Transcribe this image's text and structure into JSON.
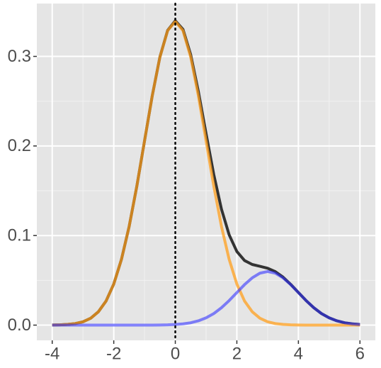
{
  "chart_data": {
    "type": "line",
    "x": [
      -4,
      -3.75,
      -3.5,
      -3.25,
      -3,
      -2.75,
      -2.5,
      -2.25,
      -2,
      -1.75,
      -1.5,
      -1.25,
      -1,
      -0.75,
      -0.5,
      -0.25,
      0,
      0.25,
      0.5,
      0.75,
      1,
      1.25,
      1.5,
      1.75,
      2,
      2.25,
      2.5,
      2.75,
      3,
      3.25,
      3.5,
      3.75,
      4,
      4.25,
      4.5,
      4.75,
      5,
      5.25,
      5.5,
      5.75,
      6
    ],
    "series": [
      {
        "color": "#333333",
        "alpha": 1,
        "values": [
          0.0001,
          0.0003,
          0.0008,
          0.0017,
          0.0037,
          0.0077,
          0.0149,
          0.0269,
          0.0459,
          0.0734,
          0.1101,
          0.1552,
          0.2057,
          0.2559,
          0.2994,
          0.329,
          0.3398,
          0.3301,
          0.3019,
          0.2607,
          0.2138,
          0.1681,
          0.1295,
          0.1008,
          0.0822,
          0.0721,
          0.0677,
          0.0657,
          0.0635,
          0.0597,
          0.0536,
          0.0455,
          0.0364,
          0.0274,
          0.0194,
          0.0129,
          0.0081,
          0.0048,
          0.0026,
          0.0014,
          0.0007
        ]
      },
      {
        "color": "#ff9f1c",
        "alpha": 0.75,
        "values": [
          0.0001,
          0.0003,
          0.0008,
          0.0017,
          0.0037,
          0.0077,
          0.0149,
          0.0269,
          0.0459,
          0.0734,
          0.1101,
          0.1552,
          0.2057,
          0.2559,
          0.2993,
          0.3287,
          0.3391,
          0.3287,
          0.2993,
          0.2559,
          0.2057,
          0.1552,
          0.1101,
          0.0734,
          0.0459,
          0.0269,
          0.0149,
          0.0077,
          0.0037,
          0.0017,
          0.0008,
          0.0003,
          0.0001,
          0,
          0,
          0,
          0,
          0,
          0,
          0,
          0
        ]
      },
      {
        "color": "#3333ff",
        "alpha": 0.6,
        "values": [
          0,
          0,
          0,
          0,
          0,
          0,
          0,
          0,
          0,
          0,
          0,
          0,
          0,
          0,
          0.0001,
          0.0003,
          0.0007,
          0.0014,
          0.0026,
          0.0048,
          0.0081,
          0.0129,
          0.0194,
          0.0274,
          0.0363,
          0.0452,
          0.0528,
          0.058,
          0.0598,
          0.058,
          0.0528,
          0.0452,
          0.0363,
          0.0274,
          0.0194,
          0.0129,
          0.0081,
          0.0048,
          0.0026,
          0.0014,
          0.0007
        ]
      }
    ],
    "vline": 0,
    "xlim": [
      -4.5,
      6.5
    ],
    "xticks": [
      -4,
      -2,
      0,
      2,
      4,
      6
    ],
    "ylim": [
      -0.017,
      0.359
    ],
    "yticks": [
      {
        "value": 0,
        "label": "0.0"
      },
      0.1,
      0.2,
      0.3
    ],
    "grid": true
  }
}
